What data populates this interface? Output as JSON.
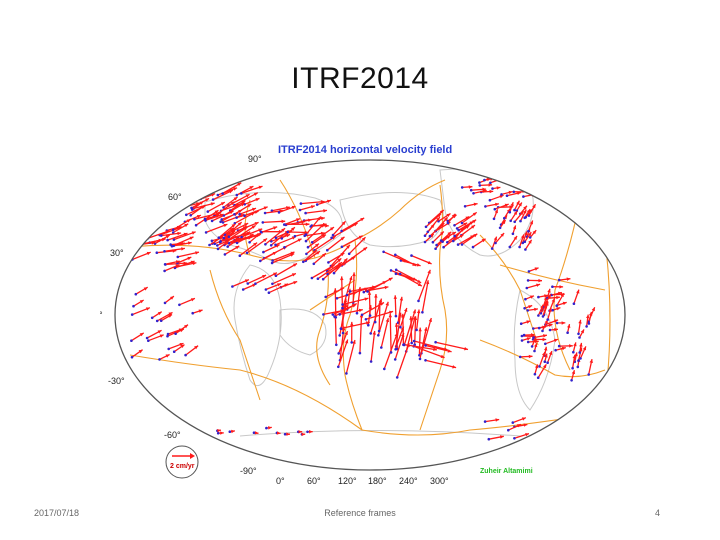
{
  "slide": {
    "title": "ITRF2014",
    "footer_date": "2017/07/18",
    "footer_center": "Reference frames",
    "page_number": "4"
  },
  "map": {
    "title": "ITRF2014 horizontal velocity field",
    "lat_labels": [
      "90°",
      "60°",
      "30°",
      "0°",
      "-30°",
      "-60°",
      "-90°"
    ],
    "lon_labels": [
      "0°",
      "60°",
      "120°",
      "180°",
      "240°",
      "300°"
    ],
    "legend_label": "2 cm/yr",
    "author": "Zuheir Altamimi",
    "colors": {
      "vector": "#ff1a1a",
      "vector_tail": "#3322cc",
      "plate_boundary": "#f0a030",
      "coastline": "#c8c8c8",
      "outline": "#555555",
      "title": "#2a3fd0",
      "author": "#22bb22"
    }
  }
}
